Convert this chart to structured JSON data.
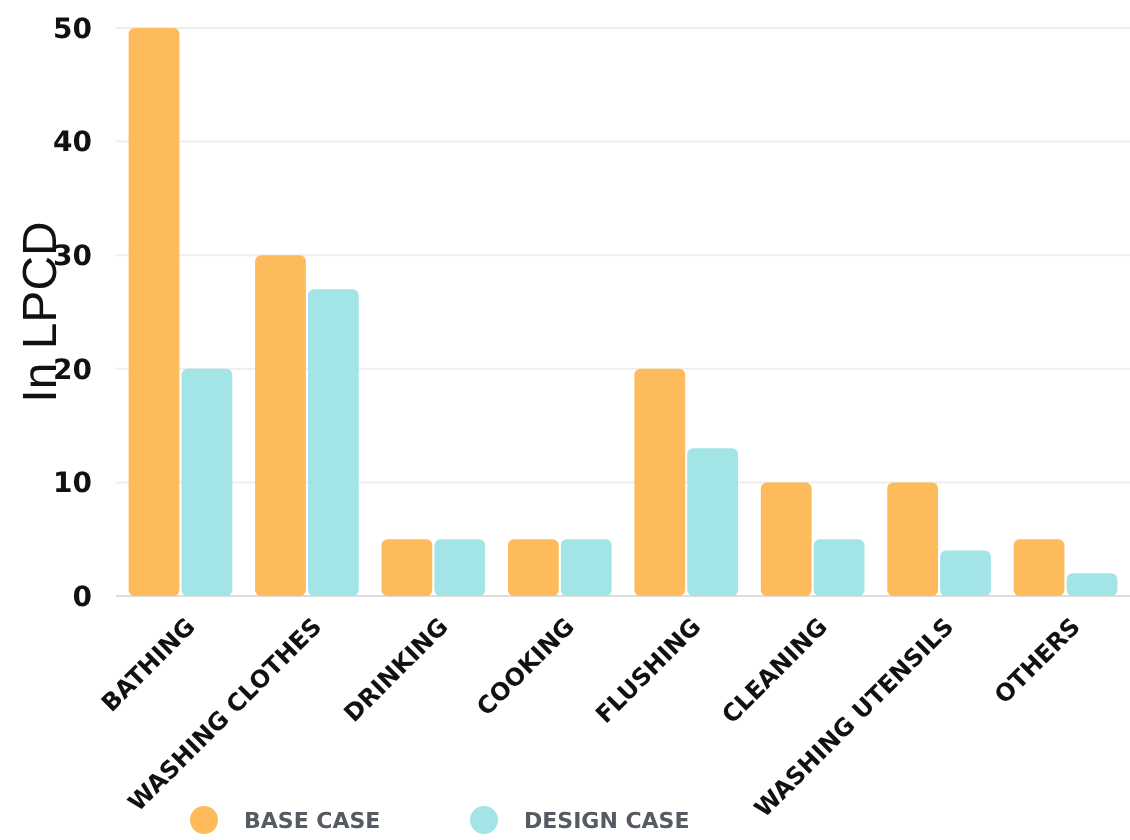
{
  "chart_data": {
    "type": "bar",
    "ylabel": "In LPCD",
    "categories": [
      "BATHING",
      "WASHING CLOTHES",
      "DRINKING",
      "COOKING",
      "FLUSHING",
      "CLEANING",
      "WASHING UTENSILS",
      "OTHERS"
    ],
    "series": [
      {
        "name": "BASE CASE",
        "color": "#fdbb5c",
        "values": [
          50,
          30,
          5,
          5,
          20,
          10,
          10,
          5
        ]
      },
      {
        "name": "DESIGN CASE",
        "color": "#a3e4e6",
        "values": [
          20,
          27,
          5,
          5,
          13,
          5,
          4,
          2
        ]
      }
    ],
    "ylim": [
      0,
      50
    ],
    "yticks": [
      0,
      10,
      20,
      30,
      40,
      50
    ],
    "grid": "y",
    "legend": "bottom"
  }
}
